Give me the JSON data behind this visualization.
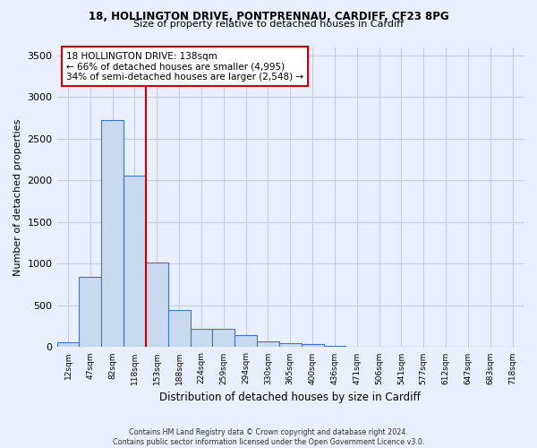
{
  "title1": "18, HOLLINGTON DRIVE, PONTPRENNAU, CARDIFF, CF23 8PG",
  "title2": "Size of property relative to detached houses in Cardiff",
  "xlabel": "Distribution of detached houses by size in Cardiff",
  "ylabel": "Number of detached properties",
  "footnote": "Contains HM Land Registry data © Crown copyright and database right 2024.\nContains public sector information licensed under the Open Government Licence v3.0.",
  "categories": [
    "12sqm",
    "47sqm",
    "82sqm",
    "118sqm",
    "153sqm",
    "188sqm",
    "224sqm",
    "259sqm",
    "294sqm",
    "330sqm",
    "365sqm",
    "400sqm",
    "436sqm",
    "471sqm",
    "506sqm",
    "541sqm",
    "577sqm",
    "612sqm",
    "647sqm",
    "683sqm",
    "718sqm"
  ],
  "values": [
    60,
    840,
    2720,
    2060,
    1010,
    450,
    215,
    215,
    145,
    70,
    50,
    40,
    20,
    0,
    0,
    0,
    0,
    0,
    0,
    0,
    0
  ],
  "bar_color": "#c9d9f0",
  "bar_edge_color": "#4472c4",
  "bg_color": "#eaf0fb",
  "grid_color": "#d0d8e8",
  "annotation_title": "18 HOLLINGTON DRIVE: 138sqm",
  "annotation_line1": "← 66% of detached houses are smaller (4,995)",
  "annotation_line2": "34% of semi-detached houses are larger (2,548) →",
  "annotation_box_color": "#ffffff",
  "annotation_box_edge": "#cc0000",
  "vline_color": "#cc0000",
  "ylim": [
    0,
    3600
  ],
  "yticks": [
    0,
    500,
    1000,
    1500,
    2000,
    2500,
    3000,
    3500
  ]
}
